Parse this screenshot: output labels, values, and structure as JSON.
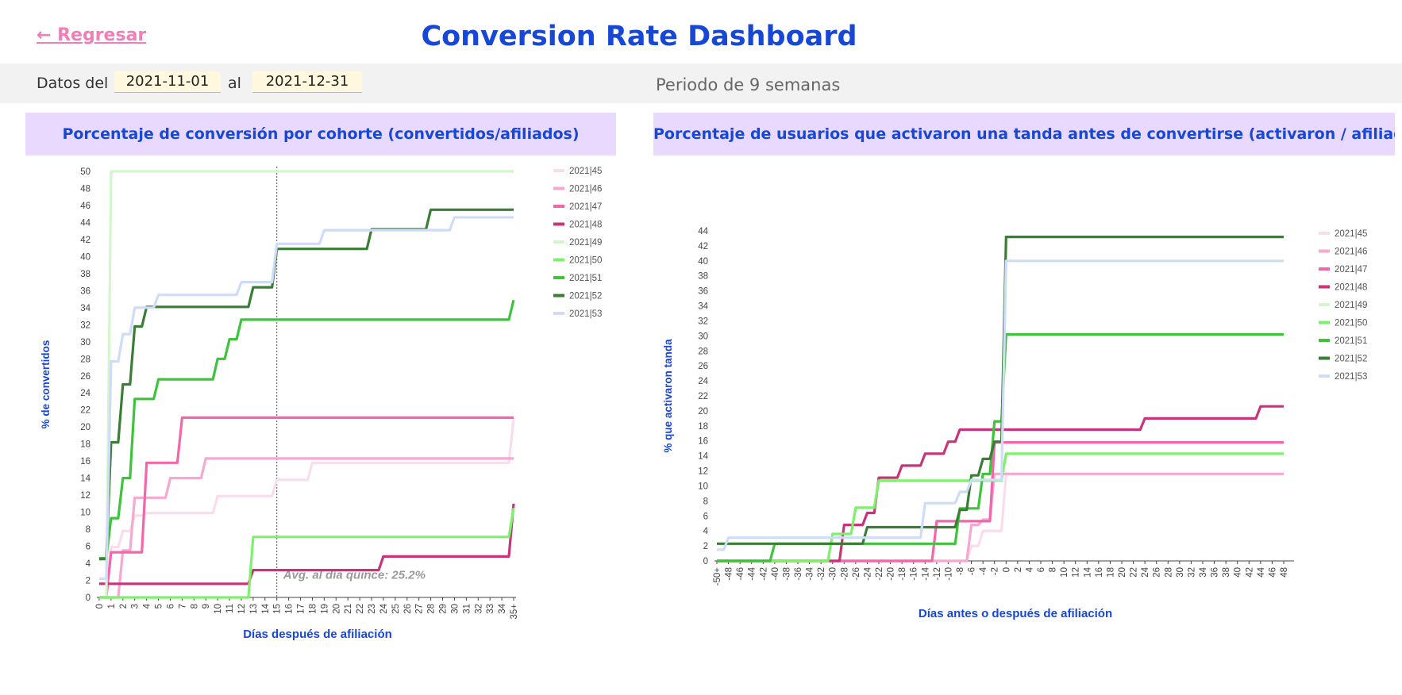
{
  "header": {
    "back_label": "← Regresar",
    "title": "Conversion Rate Dashboard"
  },
  "filters": {
    "from_label": "Datos del",
    "start_date": "2021-11-01",
    "to_label": "al",
    "end_date": "2021-12-31",
    "period": "Periodo de 9 semanas"
  },
  "colors": {
    "2021|45": "#fadcec",
    "2021|46": "#f7a8d1",
    "2021|47": "#f266aa",
    "2021|48": "#c8337a",
    "2021|49": "#d5f5cf",
    "2021|50": "#7cf26a",
    "2021|51": "#3ec43a",
    "2021|52": "#3a7d35",
    "2021|53": "#cfdcf7"
  },
  "chart_data": [
    {
      "type": "line",
      "title": "Porcentaje de conversión por cohorte (convertidos/afiliados)",
      "xlabel": "Días después de afiliación",
      "ylabel": "% de convertidos",
      "categories": [
        "0",
        "1",
        "2",
        "3",
        "4",
        "5",
        "6",
        "7",
        "8",
        "9",
        "10",
        "11",
        "12",
        "13",
        "14",
        "15",
        "16",
        "17",
        "18",
        "19",
        "20",
        "21",
        "22",
        "23",
        "24",
        "25",
        "26",
        "27",
        "28",
        "29",
        "30",
        "31",
        "32",
        "33",
        "34",
        "35+"
      ],
      "ylim": [
        0,
        50
      ],
      "yticks": [
        0,
        2,
        4,
        6,
        8,
        10,
        12,
        14,
        16,
        18,
        20,
        22,
        24,
        26,
        28,
        30,
        32,
        34,
        36,
        38,
        40,
        42,
        44,
        46,
        48,
        50
      ],
      "legend_position": "top-right",
      "reference_line": {
        "x": "15",
        "label": "Avg. al día quince: 25.2%"
      },
      "series": [
        {
          "name": "2021|45",
          "values": [
            1.7,
            5.9,
            7.8,
            9.6,
            9.9,
            9.9,
            9.9,
            9.9,
            9.9,
            9.9,
            11.9,
            11.9,
            11.9,
            11.9,
            11.9,
            13.8,
            13.8,
            13.8,
            15.8,
            15.8,
            15.8,
            15.8,
            15.8,
            15.8,
            15.8,
            15.8,
            15.8,
            15.8,
            15.8,
            15.8,
            15.8,
            15.8,
            15.8,
            15.8,
            15.8,
            21.0
          ]
        },
        {
          "name": "2021|46",
          "values": [
            0,
            0,
            5.5,
            11.7,
            11.7,
            11.7,
            14.0,
            14.0,
            14.0,
            16.3,
            16.3,
            16.3,
            16.3,
            16.3,
            16.3,
            16.3,
            16.3,
            16.3,
            16.3,
            16.3,
            16.3,
            16.3,
            16.3,
            16.3,
            16.3,
            16.3,
            16.3,
            16.3,
            16.3,
            16.3,
            16.3,
            16.3,
            16.3,
            16.3,
            16.3,
            16.3
          ]
        },
        {
          "name": "2021|47",
          "values": [
            0,
            5.3,
            5.3,
            5.3,
            15.8,
            15.8,
            15.8,
            21.1,
            21.1,
            21.1,
            21.1,
            21.1,
            21.1,
            21.1,
            21.1,
            21.1,
            21.1,
            21.1,
            21.1,
            21.1,
            21.1,
            21.1,
            21.1,
            21.1,
            21.1,
            21.1,
            21.1,
            21.1,
            21.1,
            21.1,
            21.1,
            21.1,
            21.1,
            21.1,
            21.1,
            21.1
          ]
        },
        {
          "name": "2021|48",
          "values": [
            1.6,
            1.6,
            1.6,
            1.6,
            1.6,
            1.6,
            1.6,
            1.6,
            1.6,
            1.6,
            1.6,
            1.6,
            1.6,
            3.2,
            3.2,
            3.2,
            3.2,
            3.2,
            3.2,
            3.2,
            3.2,
            3.2,
            3.2,
            3.2,
            4.8,
            4.8,
            4.8,
            4.8,
            4.8,
            4.8,
            4.8,
            4.8,
            4.8,
            4.8,
            4.8,
            11.0
          ]
        },
        {
          "name": "2021|49",
          "values": [
            0,
            50,
            50,
            50,
            50,
            50,
            50,
            50,
            50,
            50,
            50,
            50,
            50,
            50,
            50,
            50,
            50,
            50,
            50,
            50,
            50,
            50,
            50,
            50,
            50,
            50,
            50,
            50,
            50,
            50,
            50,
            50,
            50,
            50,
            50,
            50
          ]
        },
        {
          "name": "2021|50",
          "values": [
            0,
            0,
            0,
            0,
            0,
            0,
            0,
            0,
            0,
            0,
            0,
            0,
            0,
            7.1,
            7.1,
            7.1,
            7.1,
            7.1,
            7.1,
            7.1,
            7.1,
            7.1,
            7.1,
            7.1,
            7.1,
            7.1,
            7.1,
            7.1,
            7.1,
            7.1,
            7.1,
            7.1,
            7.1,
            7.1,
            7.1,
            10.5
          ]
        },
        {
          "name": "2021|51",
          "values": [
            4.6,
            9.3,
            14.0,
            23.3,
            23.3,
            25.6,
            25.6,
            25.6,
            25.6,
            25.6,
            28.0,
            30.3,
            32.6,
            32.6,
            32.6,
            32.6,
            32.6,
            32.6,
            32.6,
            32.6,
            32.6,
            32.6,
            32.6,
            32.6,
            32.6,
            32.6,
            32.6,
            32.6,
            32.6,
            32.6,
            32.6,
            32.6,
            32.6,
            32.6,
            32.6,
            34.9
          ]
        },
        {
          "name": "2021|52",
          "values": [
            4.5,
            18.2,
            25.0,
            31.8,
            34.1,
            34.1,
            34.1,
            34.1,
            34.1,
            34.1,
            34.1,
            34.1,
            34.1,
            36.4,
            36.4,
            40.9,
            40.9,
            40.9,
            40.9,
            40.9,
            40.9,
            40.9,
            40.9,
            43.2,
            43.2,
            43.2,
            43.2,
            43.2,
            45.5,
            45.5,
            45.5,
            45.5,
            45.5,
            45.5,
            45.5,
            45.5
          ]
        },
        {
          "name": "2021|53",
          "values": [
            2.2,
            27.7,
            30.9,
            34.0,
            34.0,
            35.5,
            35.5,
            35.5,
            35.5,
            35.5,
            35.5,
            35.5,
            37.0,
            37.0,
            37.0,
            41.5,
            41.5,
            41.5,
            41.5,
            43.1,
            43.1,
            43.1,
            43.1,
            43.1,
            43.1,
            43.1,
            43.1,
            43.1,
            43.1,
            43.1,
            44.6,
            44.6,
            44.6,
            44.6,
            44.6,
            44.6
          ]
        }
      ]
    },
    {
      "type": "line",
      "title": "Porcentaje de usuarios que activaron una tanda antes de convertirse (activaron / afiliados)",
      "xlabel": "Días antes o después de afiliación",
      "ylabel": "% que activaron tanda",
      "x": [
        -50,
        -48,
        -46,
        -44,
        -42,
        -40,
        -38,
        -36,
        -34,
        -32,
        -30,
        -28,
        -26,
        -24,
        -22,
        -20,
        -18,
        -16,
        -14,
        -12,
        -10,
        -8,
        -6,
        -4,
        -2,
        0,
        2,
        4,
        6,
        8,
        10,
        12,
        14,
        16,
        18,
        20,
        22,
        24,
        26,
        28,
        30,
        32,
        34,
        36,
        38,
        40,
        42,
        44,
        46,
        48
      ],
      "xticks": [
        "-50+",
        "-48",
        "-46",
        "-44",
        "-42",
        "-40",
        "-38",
        "-36",
        "-34",
        "-32",
        "-30",
        "-28",
        "-26",
        "-24",
        "-22",
        "-20",
        "-18",
        "-16",
        "-14",
        "-12",
        "-10",
        "-8",
        "-6",
        "-4",
        "-2",
        "0",
        "2",
        "4",
        "6",
        "8",
        "10",
        "12",
        "14",
        "16",
        "18",
        "20",
        "22",
        "24",
        "26",
        "28",
        "30",
        "32",
        "34",
        "36",
        "38",
        "40",
        "42",
        "44",
        "46",
        "48"
      ],
      "ylim": [
        0,
        44
      ],
      "yticks": [
        0,
        2,
        4,
        6,
        8,
        10,
        12,
        14,
        16,
        18,
        20,
        22,
        24,
        26,
        28,
        30,
        32,
        34,
        36,
        38,
        40,
        42,
        44
      ],
      "legend_position": "top-right",
      "series": [
        {
          "name": "2021|45",
          "values": [
            0,
            0,
            0,
            0,
            0,
            0,
            0,
            0,
            0,
            0,
            0,
            0,
            0,
            0,
            0,
            0,
            0,
            0,
            0,
            0,
            0,
            0,
            2,
            4,
            4,
            11.6,
            11.6,
            11.6,
            11.6,
            11.6,
            11.6,
            11.6,
            11.6,
            11.6,
            11.6,
            11.6,
            11.6,
            11.6,
            11.6,
            11.6,
            11.6,
            11.6,
            11.6,
            11.6,
            11.6,
            11.6,
            11.6,
            11.6,
            11.6,
            11.6
          ]
        },
        {
          "name": "2021|46",
          "values": [
            0,
            0,
            0,
            0,
            0,
            0,
            0,
            0,
            0,
            0,
            0,
            0,
            0,
            0,
            0,
            0,
            0,
            0,
            0,
            0,
            0,
            0,
            4.8,
            5.5,
            11.6,
            11.6,
            11.6,
            11.6,
            11.6,
            11.6,
            11.6,
            11.6,
            11.6,
            11.6,
            11.6,
            11.6,
            11.6,
            11.6,
            11.6,
            11.6,
            11.6,
            11.6,
            11.6,
            11.6,
            11.6,
            11.6,
            11.6,
            11.6,
            11.6,
            11.6
          ]
        },
        {
          "name": "2021|47",
          "values": [
            0,
            0,
            0,
            0,
            0,
            0,
            0,
            0,
            0,
            0,
            0,
            0,
            0,
            0,
            0,
            0,
            0,
            0,
            0,
            5.3,
            5.3,
            5.3,
            5.3,
            5.3,
            15.8,
            15.8,
            15.8,
            15.8,
            15.8,
            15.8,
            15.8,
            15.8,
            15.8,
            15.8,
            15.8,
            15.8,
            15.8,
            15.8,
            15.8,
            15.8,
            15.8,
            15.8,
            15.8,
            15.8,
            15.8,
            15.8,
            15.8,
            15.8,
            15.8,
            15.8
          ]
        },
        {
          "name": "2021|48",
          "values": [
            0,
            0,
            0,
            0,
            0,
            0,
            0,
            0,
            0,
            0,
            0,
            4.8,
            4.8,
            6.4,
            11.1,
            11.1,
            12.7,
            12.7,
            14.3,
            14.3,
            15.9,
            17.5,
            17.5,
            17.5,
            17.5,
            17.5,
            17.5,
            17.5,
            17.5,
            17.5,
            17.5,
            17.5,
            17.5,
            17.5,
            17.5,
            17.5,
            17.5,
            19.0,
            19.0,
            19.0,
            19.0,
            19.0,
            19.0,
            19.0,
            19.0,
            19.0,
            19.0,
            20.6,
            20.6,
            20.6
          ]
        },
        {
          "name": "2021|50",
          "values": [
            0,
            0,
            0,
            0,
            0,
            0,
            0,
            0,
            0,
            0,
            3.6,
            3.6,
            7.1,
            7.1,
            10.7,
            10.7,
            10.7,
            10.7,
            10.7,
            10.7,
            10.7,
            10.7,
            10.7,
            10.7,
            10.7,
            14.3,
            14.3,
            14.3,
            14.3,
            14.3,
            14.3,
            14.3,
            14.3,
            14.3,
            14.3,
            14.3,
            14.3,
            14.3,
            14.3,
            14.3,
            14.3,
            14.3,
            14.3,
            14.3,
            14.3,
            14.3,
            14.3,
            14.3,
            14.3,
            14.3
          ]
        },
        {
          "name": "2021|51",
          "values": [
            0,
            0,
            0,
            0,
            0,
            2.3,
            2.3,
            2.3,
            2.3,
            2.3,
            2.3,
            2.3,
            2.3,
            2.3,
            2.3,
            2.3,
            2.3,
            2.3,
            2.3,
            2.3,
            2.3,
            7.0,
            7.0,
            11.6,
            18.6,
            30.2,
            30.2,
            30.2,
            30.2,
            30.2,
            30.2,
            30.2,
            30.2,
            30.2,
            30.2,
            30.2,
            30.2,
            30.2,
            30.2,
            30.2,
            30.2,
            30.2,
            30.2,
            30.2,
            30.2,
            30.2,
            30.2,
            30.2,
            30.2,
            30.2
          ]
        },
        {
          "name": "2021|52",
          "values": [
            2.3,
            2.3,
            2.3,
            2.3,
            2.3,
            2.3,
            2.3,
            2.3,
            2.3,
            2.3,
            2.3,
            2.3,
            2.3,
            4.5,
            4.5,
            4.5,
            4.5,
            4.5,
            4.5,
            4.5,
            4.5,
            6.8,
            11.4,
            13.6,
            15.9,
            43.2,
            43.2,
            43.2,
            43.2,
            43.2,
            43.2,
            43.2,
            43.2,
            43.2,
            43.2,
            43.2,
            43.2,
            43.2,
            43.2,
            43.2,
            43.2,
            43.2,
            43.2,
            43.2,
            43.2,
            43.2,
            43.2,
            43.2,
            43.2,
            43.2
          ]
        },
        {
          "name": "2021|53",
          "values": [
            1.5,
            3.1,
            3.1,
            3.1,
            3.1,
            3.1,
            3.1,
            3.1,
            3.1,
            3.1,
            3.1,
            3.1,
            3.1,
            3.1,
            3.1,
            3.1,
            3.1,
            3.1,
            7.7,
            7.7,
            7.7,
            9.2,
            10.8,
            10.8,
            10.8,
            40.0,
            40.0,
            40.0,
            40.0,
            40.0,
            40.0,
            40.0,
            40.0,
            40.0,
            40.0,
            40.0,
            40.0,
            40.0,
            40.0,
            40.0,
            40.0,
            40.0,
            40.0,
            40.0,
            40.0,
            40.0,
            40.0,
            40.0,
            40.0,
            40.0
          ]
        }
      ]
    }
  ],
  "legend": [
    "2021|45",
    "2021|46",
    "2021|47",
    "2021|48",
    "2021|49",
    "2021|50",
    "2021|51",
    "2021|52",
    "2021|53"
  ]
}
